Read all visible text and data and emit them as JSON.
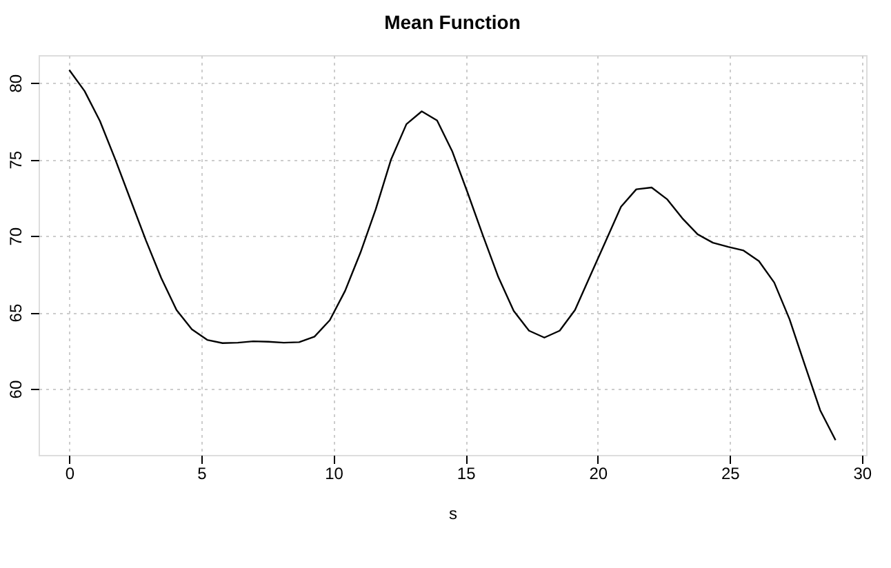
{
  "chart_data": {
    "type": "line",
    "title": "Mean Function",
    "xlabel": "s",
    "x": [
      0,
      0.58,
      1.16,
      1.74,
      2.32,
      2.9,
      3.48,
      4.06,
      4.64,
      5.22,
      5.8,
      6.38,
      6.96,
      7.54,
      8.12,
      8.7,
      9.28,
      9.86,
      10.44,
      11.02,
      11.6,
      12.18,
      12.76,
      13.34,
      13.92,
      14.5,
      15.08,
      15.66,
      16.24,
      16.82,
      17.4,
      17.98,
      18.56,
      19.14,
      19.72,
      20.3,
      20.88,
      21.46,
      22.04,
      22.62,
      23.2,
      23.78,
      24.36,
      24.94,
      25.52,
      26.1,
      26.68,
      27.26,
      27.84,
      28.42,
      29
    ],
    "series": [
      {
        "color": "#000000",
        "values": [
          80.84,
          79.46,
          77.51,
          75.0,
          72.35,
          69.71,
          67.25,
          65.15,
          63.89,
          63.2,
          62.99,
          63.02,
          63.11,
          63.08,
          63.02,
          63.05,
          63.41,
          64.49,
          66.41,
          68.9,
          71.75,
          75.0,
          77.3,
          78.14,
          77.54,
          75.5,
          72.8,
          70.0,
          67.3,
          65.1,
          63.8,
          63.35,
          63.8,
          65.15,
          67.4,
          69.65,
          71.9,
          73.04,
          73.16,
          72.4,
          71.15,
          70.1,
          69.55,
          69.28,
          69.04,
          68.35,
          66.95,
          64.55,
          61.55,
          58.6,
          56.65
        ]
      }
    ],
    "xlim": [
      -1.16,
      30.16
    ],
    "ylim": [
      55.68,
      81.81
    ],
    "xticks": [
      0,
      5,
      10,
      15,
      20,
      25,
      30
    ],
    "yticks": [
      60,
      65,
      70,
      75,
      80
    ],
    "grid": true,
    "line_style": "solid",
    "marker": "none"
  }
}
